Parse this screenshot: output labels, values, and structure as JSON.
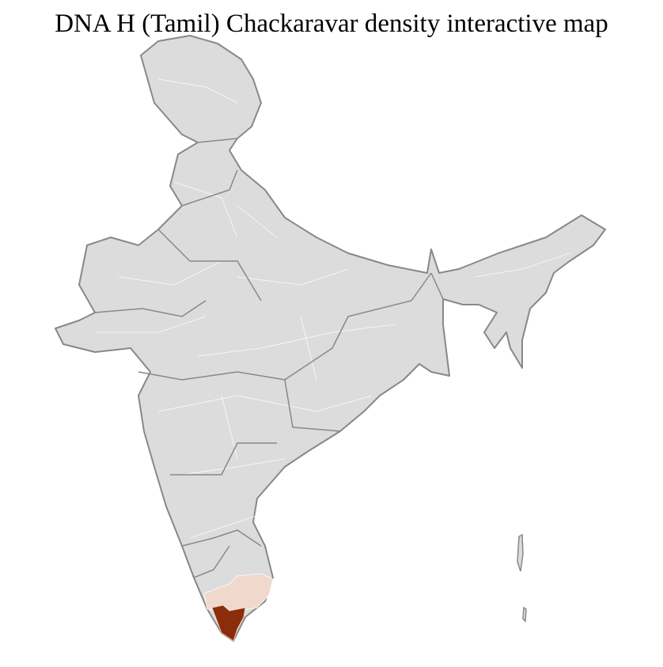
{
  "title": "DNA H (Tamil) Chackaravar density interactive map",
  "map": {
    "region": "India",
    "base_color": "#dcdcdc",
    "border_color": "#888888",
    "district_border_color": "#ffffff",
    "density_colors": {
      "high": "#8b2d0a",
      "low": "#f0d8cc"
    },
    "highlighted_regions": [
      {
        "level": "high",
        "area": "southern tip of Tamil Nadu"
      },
      {
        "level": "low",
        "area": "southern Tamil Nadu"
      }
    ]
  }
}
